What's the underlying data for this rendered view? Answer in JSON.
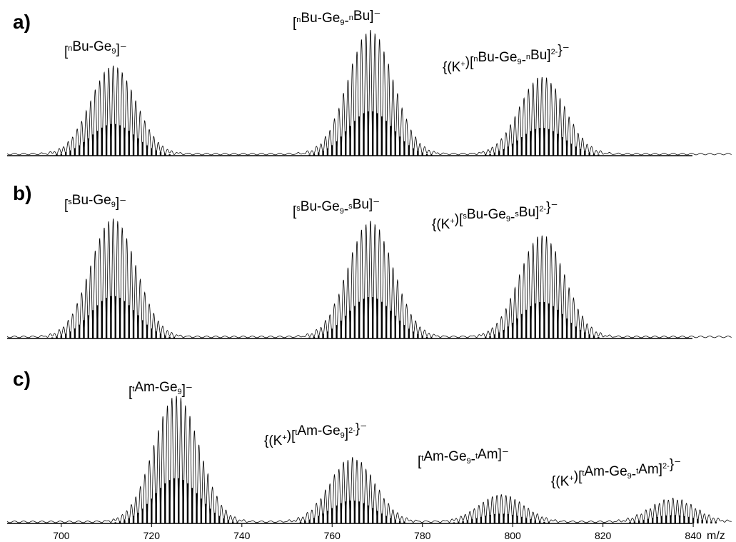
{
  "chart_data": {
    "type": "line",
    "xlabel": "m/z",
    "xlim": [
      688,
      849
    ],
    "x_ticks": [
      700,
      720,
      740,
      760,
      780,
      800,
      820,
      840
    ],
    "series_style": "measured spectrum (thin line) with simulated isotope pattern (vertical sticks)",
    "panels": [
      {
        "id": "a",
        "label": "a)",
        "clusters": [
          {
            "label_parts": [
              [
                "",
                "["
              ],
              [
                "sup",
                "n"
              ],
              [
                "",
                "Bu-Ge"
              ],
              [
                "sub",
                "9"
              ],
              [
                "",
                "]⁻"
              ]
            ],
            "label_text": "[nBu-Ge9]⁻",
            "center": 711.5,
            "width": 5.0,
            "peak": 0.65
          },
          {
            "label_parts": [
              [
                "",
                "["
              ],
              [
                "sup",
                "n"
              ],
              [
                "",
                "Bu-Ge"
              ],
              [
                "sub",
                "9"
              ],
              [
                "",
                "-"
              ],
              [
                "sup",
                "n"
              ],
              [
                "",
                "Bu]⁻"
              ]
            ],
            "label_text": "[nBu-Ge9-nBu]⁻",
            "center": 768.5,
            "width": 5.0,
            "peak": 0.91
          },
          {
            "label_parts": [
              [
                "",
                "{(K"
              ],
              [
                "sup",
                "+"
              ],
              [
                "",
                ")["
              ],
              [
                "sup",
                "n"
              ],
              [
                "",
                "Bu-Ge"
              ],
              [
                "sub",
                "9"
              ],
              [
                "",
                "-"
              ],
              [
                "sup",
                "n"
              ],
              [
                "",
                "Bu]"
              ],
              [
                "sup",
                "2-"
              ],
              [
                "",
                "}⁻"
              ]
            ],
            "label_text": "{(K+)[nBu-Ge9-nBu]2-}⁻",
            "center": 806.5,
            "width": 5.0,
            "peak": 0.57
          }
        ]
      },
      {
        "id": "b",
        "label": "b)",
        "clusters": [
          {
            "label_parts": [
              [
                "",
                "["
              ],
              [
                "sup",
                "s"
              ],
              [
                "",
                "Bu-Ge"
              ],
              [
                "sub",
                "9"
              ],
              [
                "",
                "]⁻"
              ]
            ],
            "label_text": "[sBu-Ge9]⁻",
            "center": 711.5,
            "width": 5.0,
            "peak": 0.87
          },
          {
            "label_parts": [
              [
                "",
                "["
              ],
              [
                "sup",
                "s"
              ],
              [
                "",
                "Bu-Ge"
              ],
              [
                "sub",
                "9"
              ],
              [
                "",
                "-"
              ],
              [
                "sup",
                "s"
              ],
              [
                "",
                "Bu]⁻"
              ]
            ],
            "label_text": "[sBu-Ge9-sBu]⁻",
            "center": 768.5,
            "width": 5.0,
            "peak": 0.85
          },
          {
            "label_parts": [
              [
                "",
                "{(K"
              ],
              [
                "sup",
                "+"
              ],
              [
                "",
                ")["
              ],
              [
                "sup",
                "s"
              ],
              [
                "",
                "Bu-Ge"
              ],
              [
                "sub",
                "9"
              ],
              [
                "",
                "-"
              ],
              [
                "sup",
                "s"
              ],
              [
                "",
                "Bu]"
              ],
              [
                "sup",
                "2-"
              ],
              [
                "",
                "}⁻"
              ]
            ],
            "label_text": "{(K+)[sBu-Ge9-sBu]2-}⁻",
            "center": 806.5,
            "width": 5.0,
            "peak": 0.75
          }
        ]
      },
      {
        "id": "c",
        "label": "c)",
        "clusters": [
          {
            "label_parts": [
              [
                "",
                "["
              ],
              [
                "sup",
                "t"
              ],
              [
                "",
                "Am-Ge"
              ],
              [
                "sub",
                "9"
              ],
              [
                "",
                "]⁻"
              ]
            ],
            "label_text": "[tAm-Ge9]⁻",
            "center": 725.5,
            "width": 5.0,
            "peak": 0.93
          },
          {
            "label_parts": [
              [
                "",
                "{(K"
              ],
              [
                "sup",
                "+"
              ],
              [
                "",
                ")["
              ],
              [
                "sup",
                "t"
              ],
              [
                "",
                "Am-Ge"
              ],
              [
                "sub",
                "9"
              ],
              [
                "",
                "]"
              ],
              [
                "sup",
                "2-"
              ],
              [
                "",
                "}⁻"
              ]
            ],
            "label_text": "{(K+)[tAm-Ge9]2-}⁻",
            "center": 764.5,
            "width": 5.0,
            "peak": 0.47
          },
          {
            "label_parts": [
              [
                "",
                "["
              ],
              [
                "sup",
                "t"
              ],
              [
                "",
                "Am-Ge"
              ],
              [
                "sub",
                "9"
              ],
              [
                "",
                "-"
              ],
              [
                "sup",
                "t"
              ],
              [
                "",
                "Am]⁻"
              ]
            ],
            "label_text": "[tAm-Ge9-tAm]⁻",
            "center": 797.5,
            "width": 5.0,
            "peak": 0.2
          },
          {
            "label_parts": [
              [
                "",
                "{(K"
              ],
              [
                "sup",
                "+"
              ],
              [
                "",
                ")["
              ],
              [
                "sup",
                "t"
              ],
              [
                "",
                "Am-Ge"
              ],
              [
                "sub",
                "9"
              ],
              [
                "",
                "-"
              ],
              [
                "sup",
                "t"
              ],
              [
                "",
                "Am]"
              ],
              [
                "sup",
                "2-"
              ],
              [
                "",
                "}⁻"
              ]
            ],
            "label_text": "{(K+)[tAm-Ge9-tAm]2-}⁻",
            "center": 835.5,
            "width": 5.0,
            "peak": 0.17
          }
        ]
      }
    ]
  }
}
